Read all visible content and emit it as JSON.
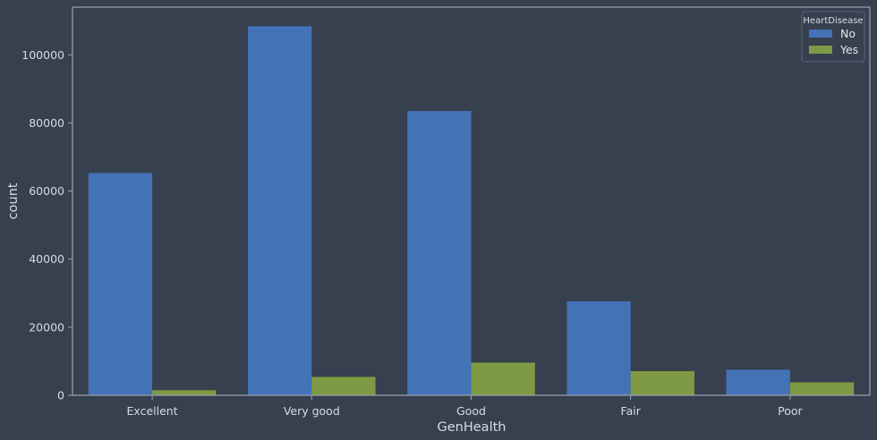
{
  "chart_data": {
    "type": "bar",
    "xlabel": "GenHealth",
    "ylabel": "count",
    "categories": [
      "Excellent",
      "Very good",
      "Good",
      "Fair",
      "Poor"
    ],
    "series": [
      {
        "name": "No",
        "values": [
          65300,
          108400,
          83500,
          27600,
          7500
        ]
      },
      {
        "name": "Yes",
        "values": [
          1500,
          5400,
          9600,
          7100,
          3800
        ]
      }
    ],
    "ylim": [
      0,
      114000
    ],
    "yticks": [
      0,
      20000,
      40000,
      60000,
      80000,
      100000
    ],
    "legend": {
      "title": "HeartDisease",
      "position": "top-right"
    },
    "colors": {
      "No": "#4472b6",
      "Yes": "#7f9a45",
      "background": "#36404f",
      "axis": "#9aa3b2"
    },
    "grid": false
  }
}
